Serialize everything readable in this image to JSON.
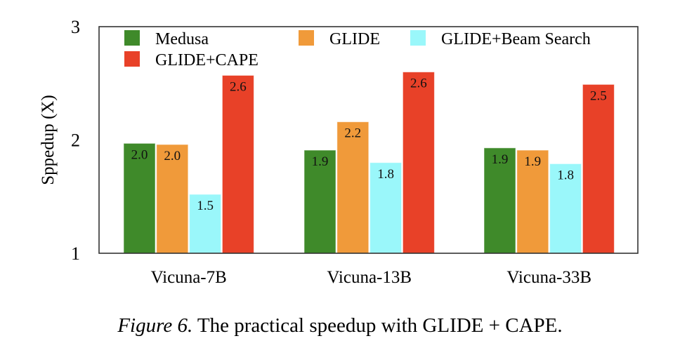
{
  "chart_data": {
    "type": "bar",
    "title": "",
    "xlabel": "",
    "ylabel": "Sppedup (X)",
    "ylim": [
      1,
      3
    ],
    "yticks": [
      1,
      2,
      3
    ],
    "grid": false,
    "legend_position": "top (inside plot, 3 columns)",
    "categories": [
      "Vicuna-7B",
      "Vicuna-13B",
      "Vicuna-33B"
    ],
    "series": [
      {
        "name": "Medusa",
        "color": "#3f8a2a",
        "values": [
          1.97,
          1.91,
          1.93
        ],
        "labels": [
          "2.0",
          "1.9",
          "1.9"
        ]
      },
      {
        "name": "GLIDE",
        "color": "#f09a3a",
        "values": [
          1.96,
          2.16,
          1.91
        ],
        "labels": [
          "2.0",
          "2.2",
          "1.9"
        ]
      },
      {
        "name": "GLIDE+Beam Search",
        "color": "#9af7fa",
        "values": [
          1.52,
          1.8,
          1.79
        ],
        "labels": [
          "1.5",
          "1.8",
          "1.8"
        ]
      },
      {
        "name": "GLIDE+CAPE",
        "color": "#e84128",
        "values": [
          2.57,
          2.6,
          2.49
        ],
        "labels": [
          "2.6",
          "2.6",
          "2.5"
        ]
      }
    ]
  },
  "caption": {
    "figure_number": "Figure 6.",
    "text_before": " The practical speedup with ",
    "method1": "GLIDE",
    "plus": " + ",
    "method2": "CAPE",
    "period": "."
  }
}
